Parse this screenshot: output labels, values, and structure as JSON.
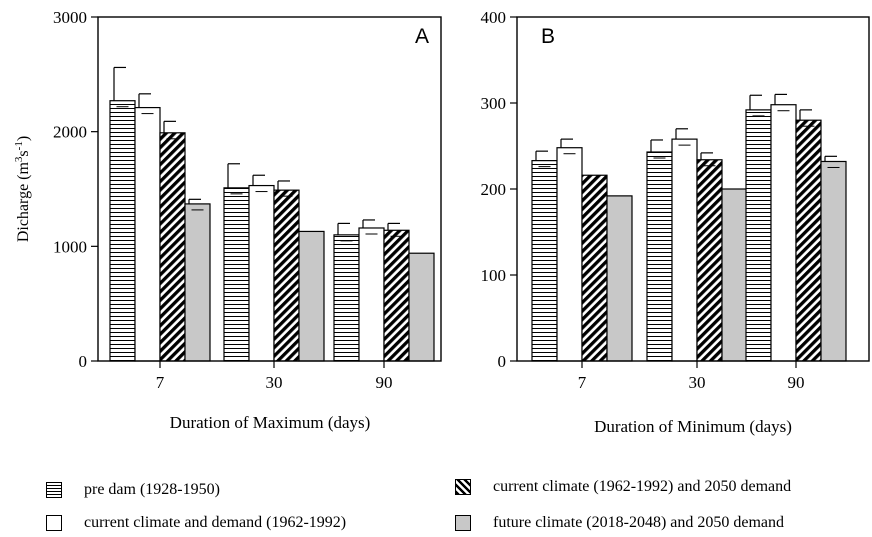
{
  "chart_data": [
    {
      "type": "bar",
      "panel_label": "A",
      "xlabel": "Duration of Maximum (days)",
      "ylabel": "Dicharge (m3s-1)",
      "ylabel_parts": {
        "pre": "Dicharge (m",
        "sup1": "3",
        "mid": "s",
        "sup2": "-1",
        "post": ")"
      },
      "ylim": [
        0,
        3000
      ],
      "yticks": [
        "0",
        "1000",
        "2000",
        "3000"
      ],
      "categories": [
        "7",
        "30",
        "90"
      ],
      "series": [
        {
          "name": "pre dam (1928-1950)",
          "pattern": "horizontal-lines",
          "values": [
            2270,
            1510,
            1100
          ],
          "error": [
            290,
            210,
            100
          ]
        },
        {
          "name": "current climate and demand (1962-1992)",
          "pattern": "white",
          "values": [
            2210,
            1530,
            1160
          ],
          "error": [
            120,
            90,
            70
          ]
        },
        {
          "name": "current climate (1962-1992) and 2050 demand",
          "pattern": "diagonal-hatch",
          "values": [
            1990,
            1490,
            1140
          ],
          "error": [
            100,
            80,
            60
          ]
        },
        {
          "name": "future climate (2018-2048) and 2050 demand",
          "pattern": "gray",
          "values": [
            1370,
            1130,
            940
          ],
          "error": [
            40,
            0,
            0
          ]
        }
      ]
    },
    {
      "type": "bar",
      "panel_label": "B",
      "xlabel": "Duration of Minimum (days)",
      "ylabel": "",
      "ylim": [
        0,
        400
      ],
      "yticks": [
        "0",
        "100",
        "200",
        "300",
        "400"
      ],
      "categories": [
        "7",
        "30",
        "90"
      ],
      "series": [
        {
          "name": "pre dam (1928-1950)",
          "pattern": "horizontal-lines",
          "values": [
            233,
            243,
            292
          ],
          "error": [
            11,
            14,
            17
          ]
        },
        {
          "name": "current climate and demand (1962-1992)",
          "pattern": "white",
          "values": [
            248,
            258,
            298
          ],
          "error": [
            10,
            12,
            12
          ]
        },
        {
          "name": "current climate (1962-1992) and 2050 demand",
          "pattern": "diagonal-hatch",
          "values": [
            216,
            234,
            280
          ],
          "error": [
            0,
            8,
            12
          ]
        },
        {
          "name": "future climate (2018-2048) and 2050 demand",
          "pattern": "gray",
          "values": [
            192,
            200,
            232
          ],
          "error": [
            0,
            0,
            6
          ]
        }
      ]
    }
  ],
  "legend": [
    {
      "label": "pre dam (1928-1950)",
      "pattern": "horizontal-lines"
    },
    {
      "label": "current climate and demand (1962-1992)",
      "pattern": "white"
    },
    {
      "label": "current climate (1962-1992) and 2050 demand",
      "pattern": "diagonal-hatch"
    },
    {
      "label": "future climate (2018-2048) and 2050 demand",
      "pattern": "gray"
    }
  ]
}
